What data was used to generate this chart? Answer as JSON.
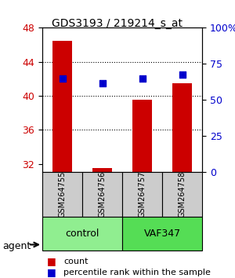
{
  "title": "GDS3193 / 219214_s_at",
  "samples": [
    "GSM264755",
    "GSM264756",
    "GSM264757",
    "GSM264758"
  ],
  "groups": [
    "control",
    "control",
    "VAF347",
    "VAF347"
  ],
  "group_labels": [
    "control",
    "VAF347"
  ],
  "group_colors": [
    "#90EE90",
    "#00CC00"
  ],
  "bar_values": [
    46.5,
    31.5,
    39.5,
    41.5
  ],
  "dot_values": [
    42.0,
    41.5,
    42.0,
    42.5
  ],
  "bar_color": "#CC0000",
  "dot_color": "#0000CC",
  "ylim_left": [
    31,
    48
  ],
  "yticks_left": [
    32,
    36,
    40,
    44,
    48
  ],
  "ylim_right": [
    0,
    100
  ],
  "yticks_right": [
    0,
    25,
    50,
    75,
    100
  ],
  "ytick_right_labels": [
    "0",
    "25",
    "50",
    "75",
    "100%"
  ],
  "bar_bottom": 31,
  "background_color": "#ffffff",
  "plot_bg_color": "#ffffff",
  "grid_color": "#000000",
  "sample_bg_color": "#cccccc",
  "agent_label": "agent",
  "legend_count_label": "count",
  "legend_pct_label": "percentile rank within the sample"
}
